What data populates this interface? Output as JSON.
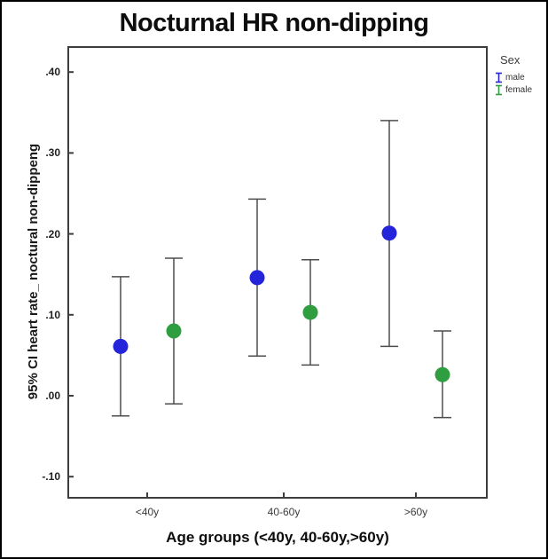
{
  "chart_data": {
    "type": "errorbar",
    "title": "Nocturnal HR non-dipping",
    "xlabel": "Age groups (<40y, 40-60y,>60y)",
    "ylabel": "95% CI heart rate_ noctural non-dippeng",
    "legend_title": "Sex",
    "legend_position": "top-right-outside",
    "grid": false,
    "categories": [
      "<40y",
      "40-60y",
      ">60y"
    ],
    "ylim": [
      -0.127,
      0.432
    ],
    "y_ticks": [
      {
        "label": ".40",
        "value": 0.4
      },
      {
        "label": ".30",
        "value": 0.3
      },
      {
        "label": ".20",
        "value": 0.2
      },
      {
        "label": ".10",
        "value": 0.1
      },
      {
        "label": ".00",
        "value": 0.0
      },
      {
        "label": "-.10",
        "value": -0.1
      }
    ],
    "series": [
      {
        "name": "male",
        "color": "#2424DB",
        "values": [
          {
            "category": "<40y",
            "mean": 0.061,
            "ci_low": -0.025,
            "ci_high": 0.147
          },
          {
            "category": "40-60y",
            "mean": 0.146,
            "ci_low": 0.049,
            "ci_high": 0.243
          },
          {
            "category": ">60y",
            "mean": 0.201,
            "ci_low": 0.061,
            "ci_high": 0.34
          }
        ]
      },
      {
        "name": "female",
        "color": "#2F9E41",
        "values": [
          {
            "category": "<40y",
            "mean": 0.08,
            "ci_low": -0.01,
            "ci_high": 0.17
          },
          {
            "category": "40-60y",
            "mean": 0.103,
            "ci_low": 0.038,
            "ci_high": 0.168
          },
          {
            "category": ">60y",
            "mean": 0.026,
            "ci_low": -0.027,
            "ci_high": 0.08
          }
        ]
      }
    ],
    "style": {
      "errorbar_color": "#4d4d4d",
      "frame_color": "#3d3d3d",
      "background": "#ffffff",
      "marker_radius": 8.5,
      "cap_half_width": 10
    }
  }
}
